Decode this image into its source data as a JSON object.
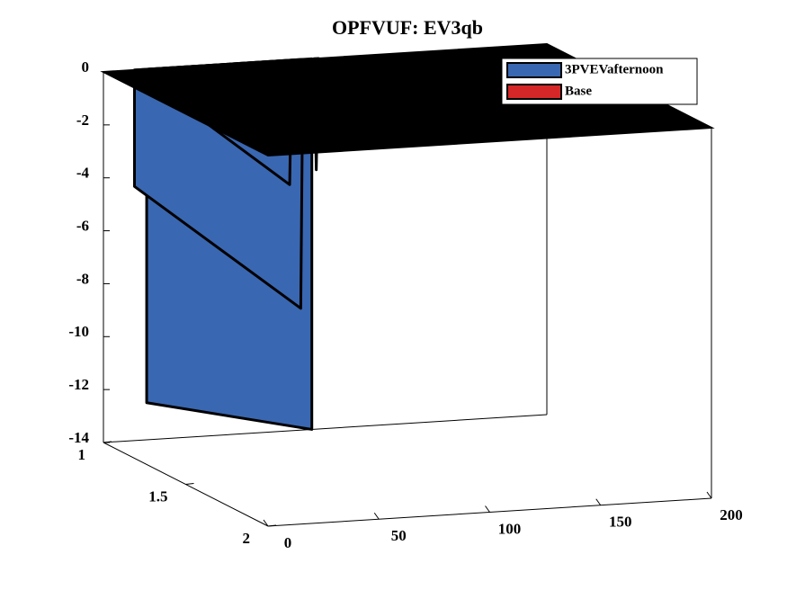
{
  "chart_data": {
    "type": "surface3d",
    "title": "OPFVUF: EV3qb",
    "xlim": [
      0,
      200
    ],
    "ylim": [
      1,
      2
    ],
    "zlim": [
      -14,
      0
    ],
    "xticks": [
      0,
      50,
      100,
      150,
      200
    ],
    "yticks": [
      1,
      1.5,
      2
    ],
    "zticks": [
      0,
      -2,
      -4,
      -6,
      -8,
      -10,
      -12,
      -14
    ],
    "legend": "top-right",
    "series": [
      {
        "name": "3PVEVafternoon",
        "color": "#3a67b1",
        "edgecolor": "#000000",
        "y": 1,
        "x": [
          19.5,
          19.5,
          94,
          94,
          null,
          14,
          14,
          89,
          90,
          null,
          14,
          84,
          85,
          null,
          95,
          96,
          97
        ],
        "values": [
          0,
          -12.6,
          -14,
          0,
          null,
          0,
          -4.4,
          -9.4,
          0,
          null,
          0,
          -4.7,
          0,
          null,
          0,
          -4.2,
          0
        ]
      },
      {
        "name": "Base",
        "color": "#d62728",
        "edgecolor": "#000000",
        "x": [
          0,
          200
        ],
        "y": [
          1,
          2
        ],
        "values": [
          [
            0,
            0
          ],
          [
            0,
            0
          ]
        ]
      }
    ]
  }
}
